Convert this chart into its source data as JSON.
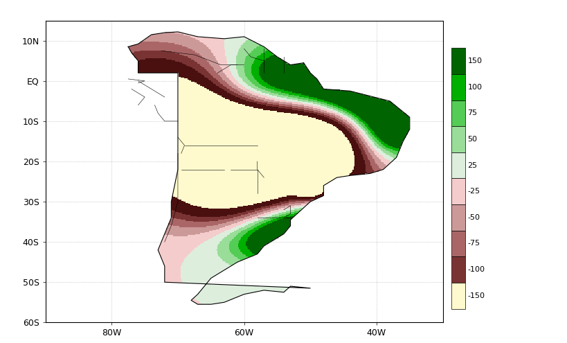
{
  "extent_lon": [
    -90,
    -30
  ],
  "extent_lat": [
    -60,
    15
  ],
  "xticks": [
    -80,
    -60,
    -40
  ],
  "xtick_labels": [
    "80W",
    "60W",
    "40W"
  ],
  "yticks": [
    10,
    0,
    -10,
    -20,
    -30,
    -40,
    -50,
    -60
  ],
  "ytick_labels": [
    "10N",
    "EQ",
    "10S",
    "20S",
    "30S",
    "40S",
    "50S",
    "60S"
  ],
  "background_color": "#ffffff",
  "grid_color": "#aaaaaa",
  "legend_labels": [
    "150",
    "100",
    "75",
    "50",
    "25",
    "-25",
    "-50",
    "-75",
    "-100",
    "-150"
  ],
  "legend_colors": [
    "#006400",
    "#00b000",
    "#55cc55",
    "#99dd99",
    "#ddeedd",
    "#f5cccc",
    "#cc9999",
    "#aa6666",
    "#7a3333",
    "#fffacd"
  ],
  "cmap_boundaries": [
    -200,
    -150,
    -100,
    -75,
    -50,
    -25,
    0,
    25,
    50,
    75,
    100,
    150,
    200
  ],
  "cmap_colors": [
    "#fffacd",
    "#4a1010",
    "#7a3333",
    "#aa6666",
    "#cc9999",
    "#f5cccc",
    "#ddeedd",
    "#99dd99",
    "#55cc55",
    "#00b000",
    "#006400",
    "#006400"
  ]
}
